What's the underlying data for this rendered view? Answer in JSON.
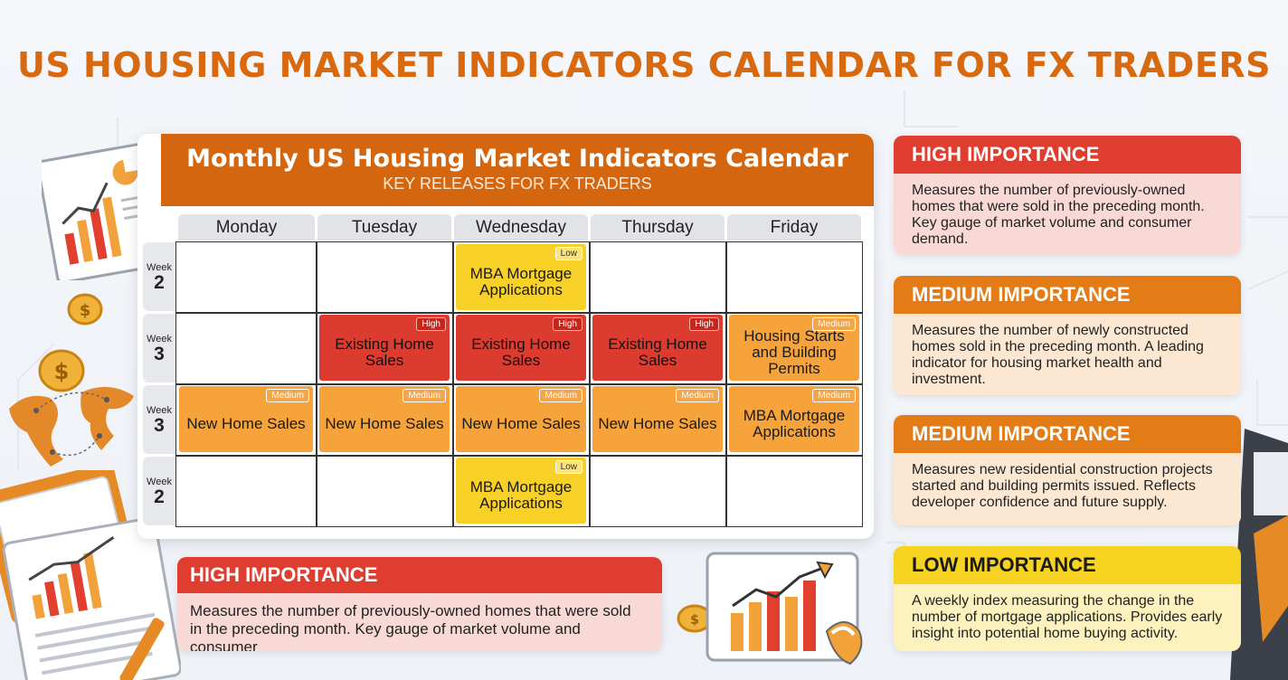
{
  "title": "US HOUSING MARKET INDICATORS CALENDAR FOR FX TRADERS",
  "calendar": {
    "title": "Monthly US Housing Market Indicators Calendar",
    "subtitle": "KEY RELEASES FOR FX TRADERS",
    "days": [
      "Monday",
      "Tuesday",
      "Wednesday",
      "Thursday",
      "Friday"
    ],
    "weeks": [
      {
        "label": "Week",
        "num": "2"
      },
      {
        "label": "Week",
        "num": "3"
      },
      {
        "label": "Week",
        "num": "3"
      },
      {
        "label": "Week",
        "num": "2"
      }
    ],
    "events": [
      {
        "week": 0,
        "day": 2,
        "name": "MBA Mortgage Applications",
        "level": "low",
        "badge": "Low"
      },
      {
        "week": 1,
        "day": 1,
        "name": "Existing Home Sales",
        "level": "high",
        "badge": "High"
      },
      {
        "week": 1,
        "day": 2,
        "name": "Existing Home Sales",
        "level": "high",
        "badge": "High"
      },
      {
        "week": 1,
        "day": 3,
        "name": "Existing Home Sales",
        "level": "high",
        "badge": "High"
      },
      {
        "week": 1,
        "day": 4,
        "name": "Housing Starts and Building Permits",
        "level": "med",
        "badge": "Medium"
      },
      {
        "week": 2,
        "day": 0,
        "name": "New Home Sales",
        "level": "med",
        "badge": "Medium"
      },
      {
        "week": 2,
        "day": 1,
        "name": "New Home Sales",
        "level": "med",
        "badge": "Medium"
      },
      {
        "week": 2,
        "day": 2,
        "name": "New Home Sales",
        "level": "med",
        "badge": "Medium"
      },
      {
        "week": 2,
        "day": 3,
        "name": "New Home Sales",
        "level": "med",
        "badge": "Medium"
      },
      {
        "week": 2,
        "day": 4,
        "name": "MBA Mortgage Applications",
        "level": "med",
        "badge": "Medium"
      },
      {
        "week": 3,
        "day": 2,
        "name": "MBA Mortgage Applications",
        "level": "low",
        "badge": "Low"
      }
    ]
  },
  "importance_cards": [
    {
      "heading": "HIGH IMPORTANCE",
      "level": "high",
      "text": "Measures the number of previously-owned homes that were sold in the preceding month. Key gauge of market volume and consumer demand."
    },
    {
      "heading": "MEDIUM IMPORTANCE",
      "level": "med",
      "text": "Measures the number of newly constructed homes sold in the preceding month. A leading indicator for housing market health and investment."
    },
    {
      "heading": "MEDIUM IMPORTANCE",
      "level": "med",
      "text": "Measures new residential construction projects started and building permits issued. Reflects developer confidence and future supply."
    },
    {
      "heading": "LOW IMPORTANCE",
      "level": "low",
      "text": "A weekly index measuring the change in the number of mortgage applications. Provides early insight into potential home buying activity."
    }
  ],
  "bottom_card": {
    "heading": "HIGH IMPORTANCE",
    "text": "Measures the number of previously-owned homes that were sold in the preceding month. Key gauge of market volume and consumer"
  },
  "colors": {
    "accent": "#d9690f",
    "high": "#de3d2f",
    "medium": "#f6a33b",
    "low": "#f7d028"
  }
}
